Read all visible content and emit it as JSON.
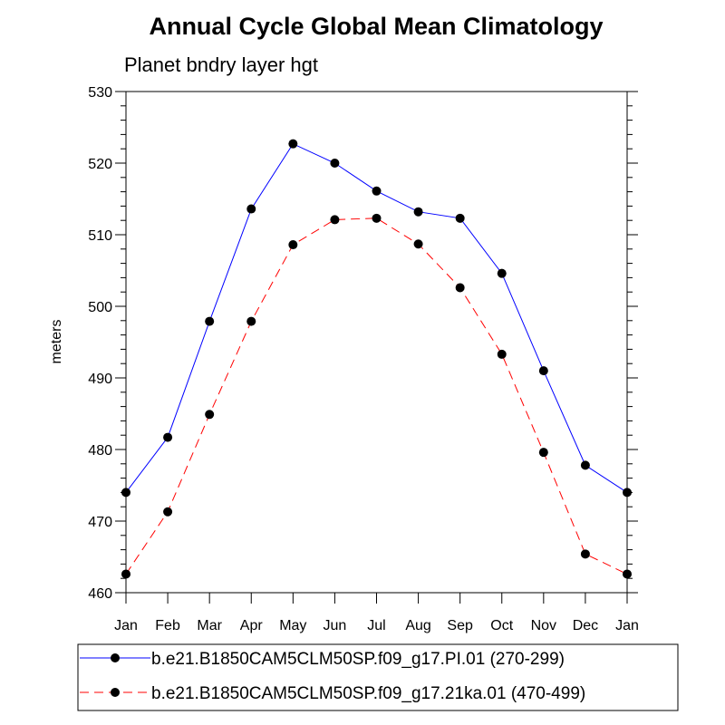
{
  "chart_data": {
    "type": "line",
    "title": "Annual Cycle Global Mean Climatology",
    "subtitle": "Planet bndry layer hgt",
    "xlabel": "",
    "ylabel": "meters",
    "categories": [
      "Jan",
      "Feb",
      "Mar",
      "Apr",
      "May",
      "Jun",
      "Jul",
      "Aug",
      "Sep",
      "Oct",
      "Nov",
      "Dec",
      "Jan"
    ],
    "ylim": [
      460,
      530
    ],
    "yticks": [
      460,
      470,
      480,
      490,
      500,
      510,
      520,
      530
    ],
    "series": [
      {
        "name": "b.e21.B1850CAM5CLM50SP.f09_g17.PI.01 (270-299)",
        "color": "#0000ff",
        "dash": "solid",
        "values": [
          474.0,
          481.7,
          497.9,
          513.6,
          522.7,
          520.0,
          516.1,
          513.2,
          512.3,
          504.6,
          491.0,
          477.8,
          474.0
        ]
      },
      {
        "name": "b.e21.B1850CAM5CLM50SP.f09_g17.21ka.01 (470-499)",
        "color": "#ff0000",
        "dash": "dashed",
        "values": [
          462.6,
          471.3,
          484.9,
          497.9,
          508.6,
          512.1,
          512.3,
          508.7,
          502.6,
          493.3,
          479.6,
          465.4,
          462.6
        ]
      }
    ],
    "grid": false,
    "legend_position": "bottom"
  }
}
